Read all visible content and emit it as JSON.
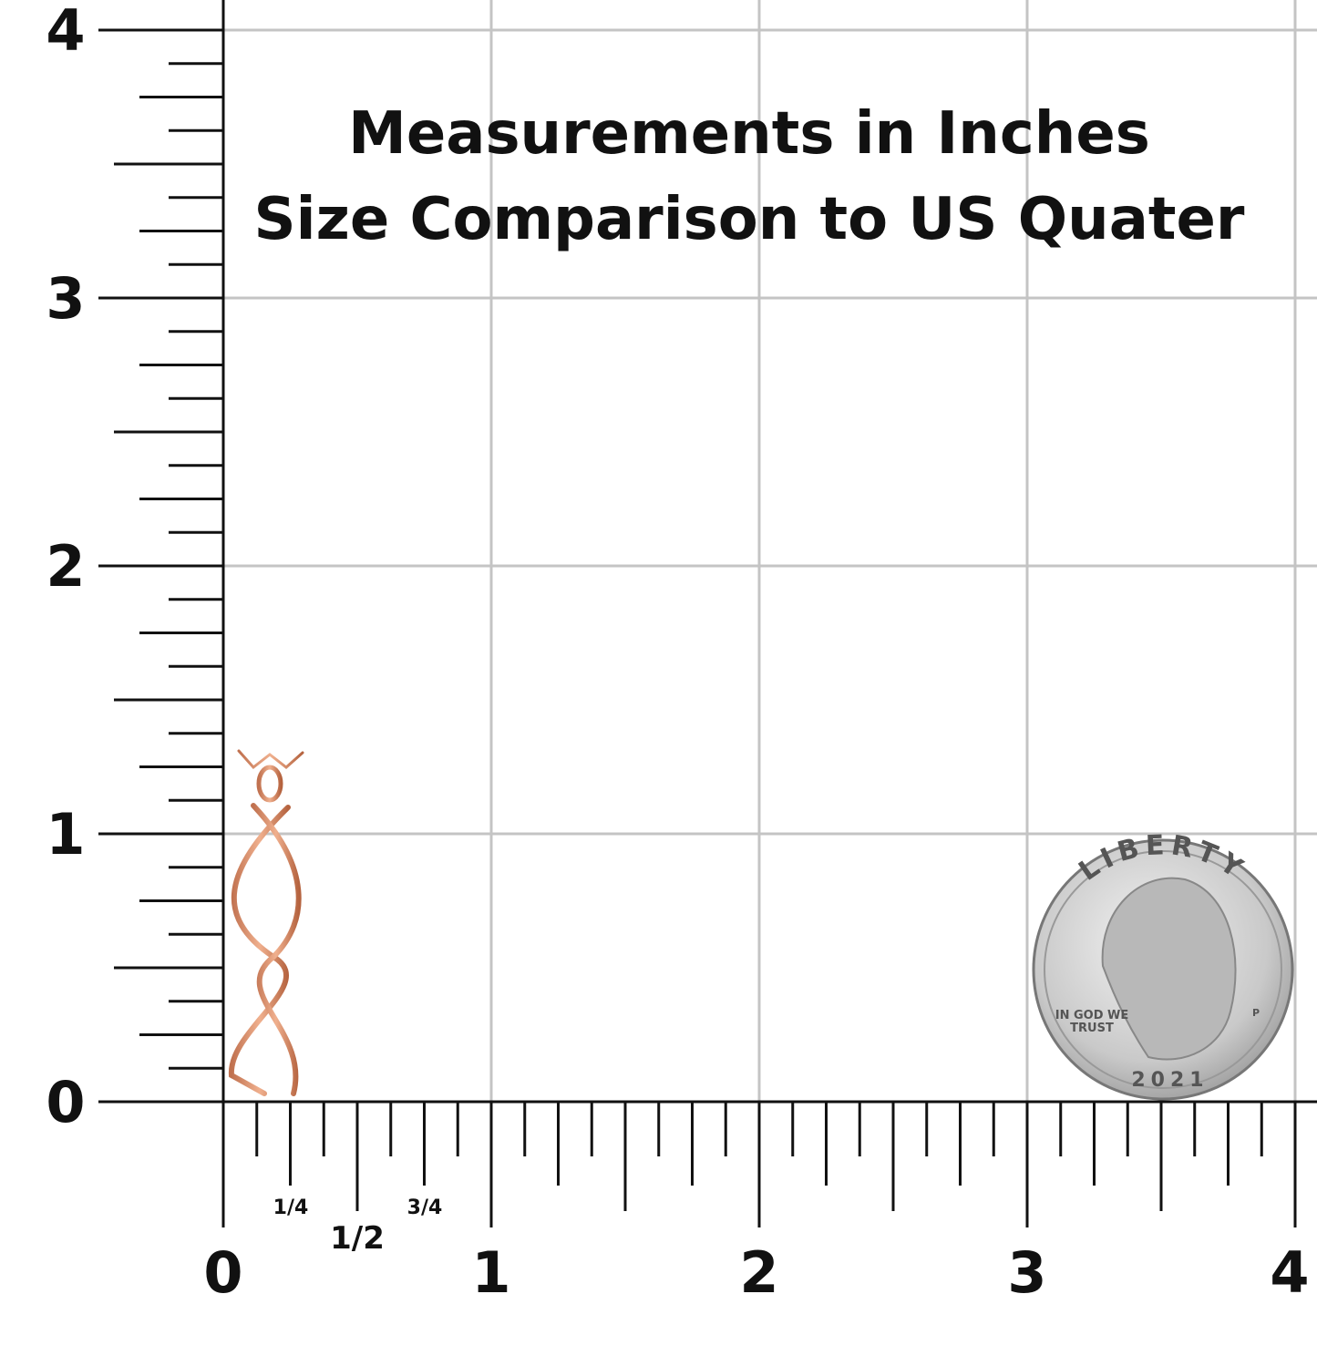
{
  "title": {
    "lines": [
      "Measurements in Inches",
      "Size Comparison to US Quater"
    ]
  },
  "ruler": {
    "y_labels": [
      "0",
      "1",
      "2",
      "3",
      "4"
    ],
    "x_labels": [
      "0",
      "1",
      "2",
      "3",
      "4"
    ],
    "fractions": [
      "1/4",
      "1/2",
      "3/4"
    ]
  },
  "coin": {
    "motto_top": "LIBERTY",
    "motto_left_1": "IN GOD WE",
    "motto_left_2": "TRUST",
    "year": "2021",
    "mint": "P"
  }
}
